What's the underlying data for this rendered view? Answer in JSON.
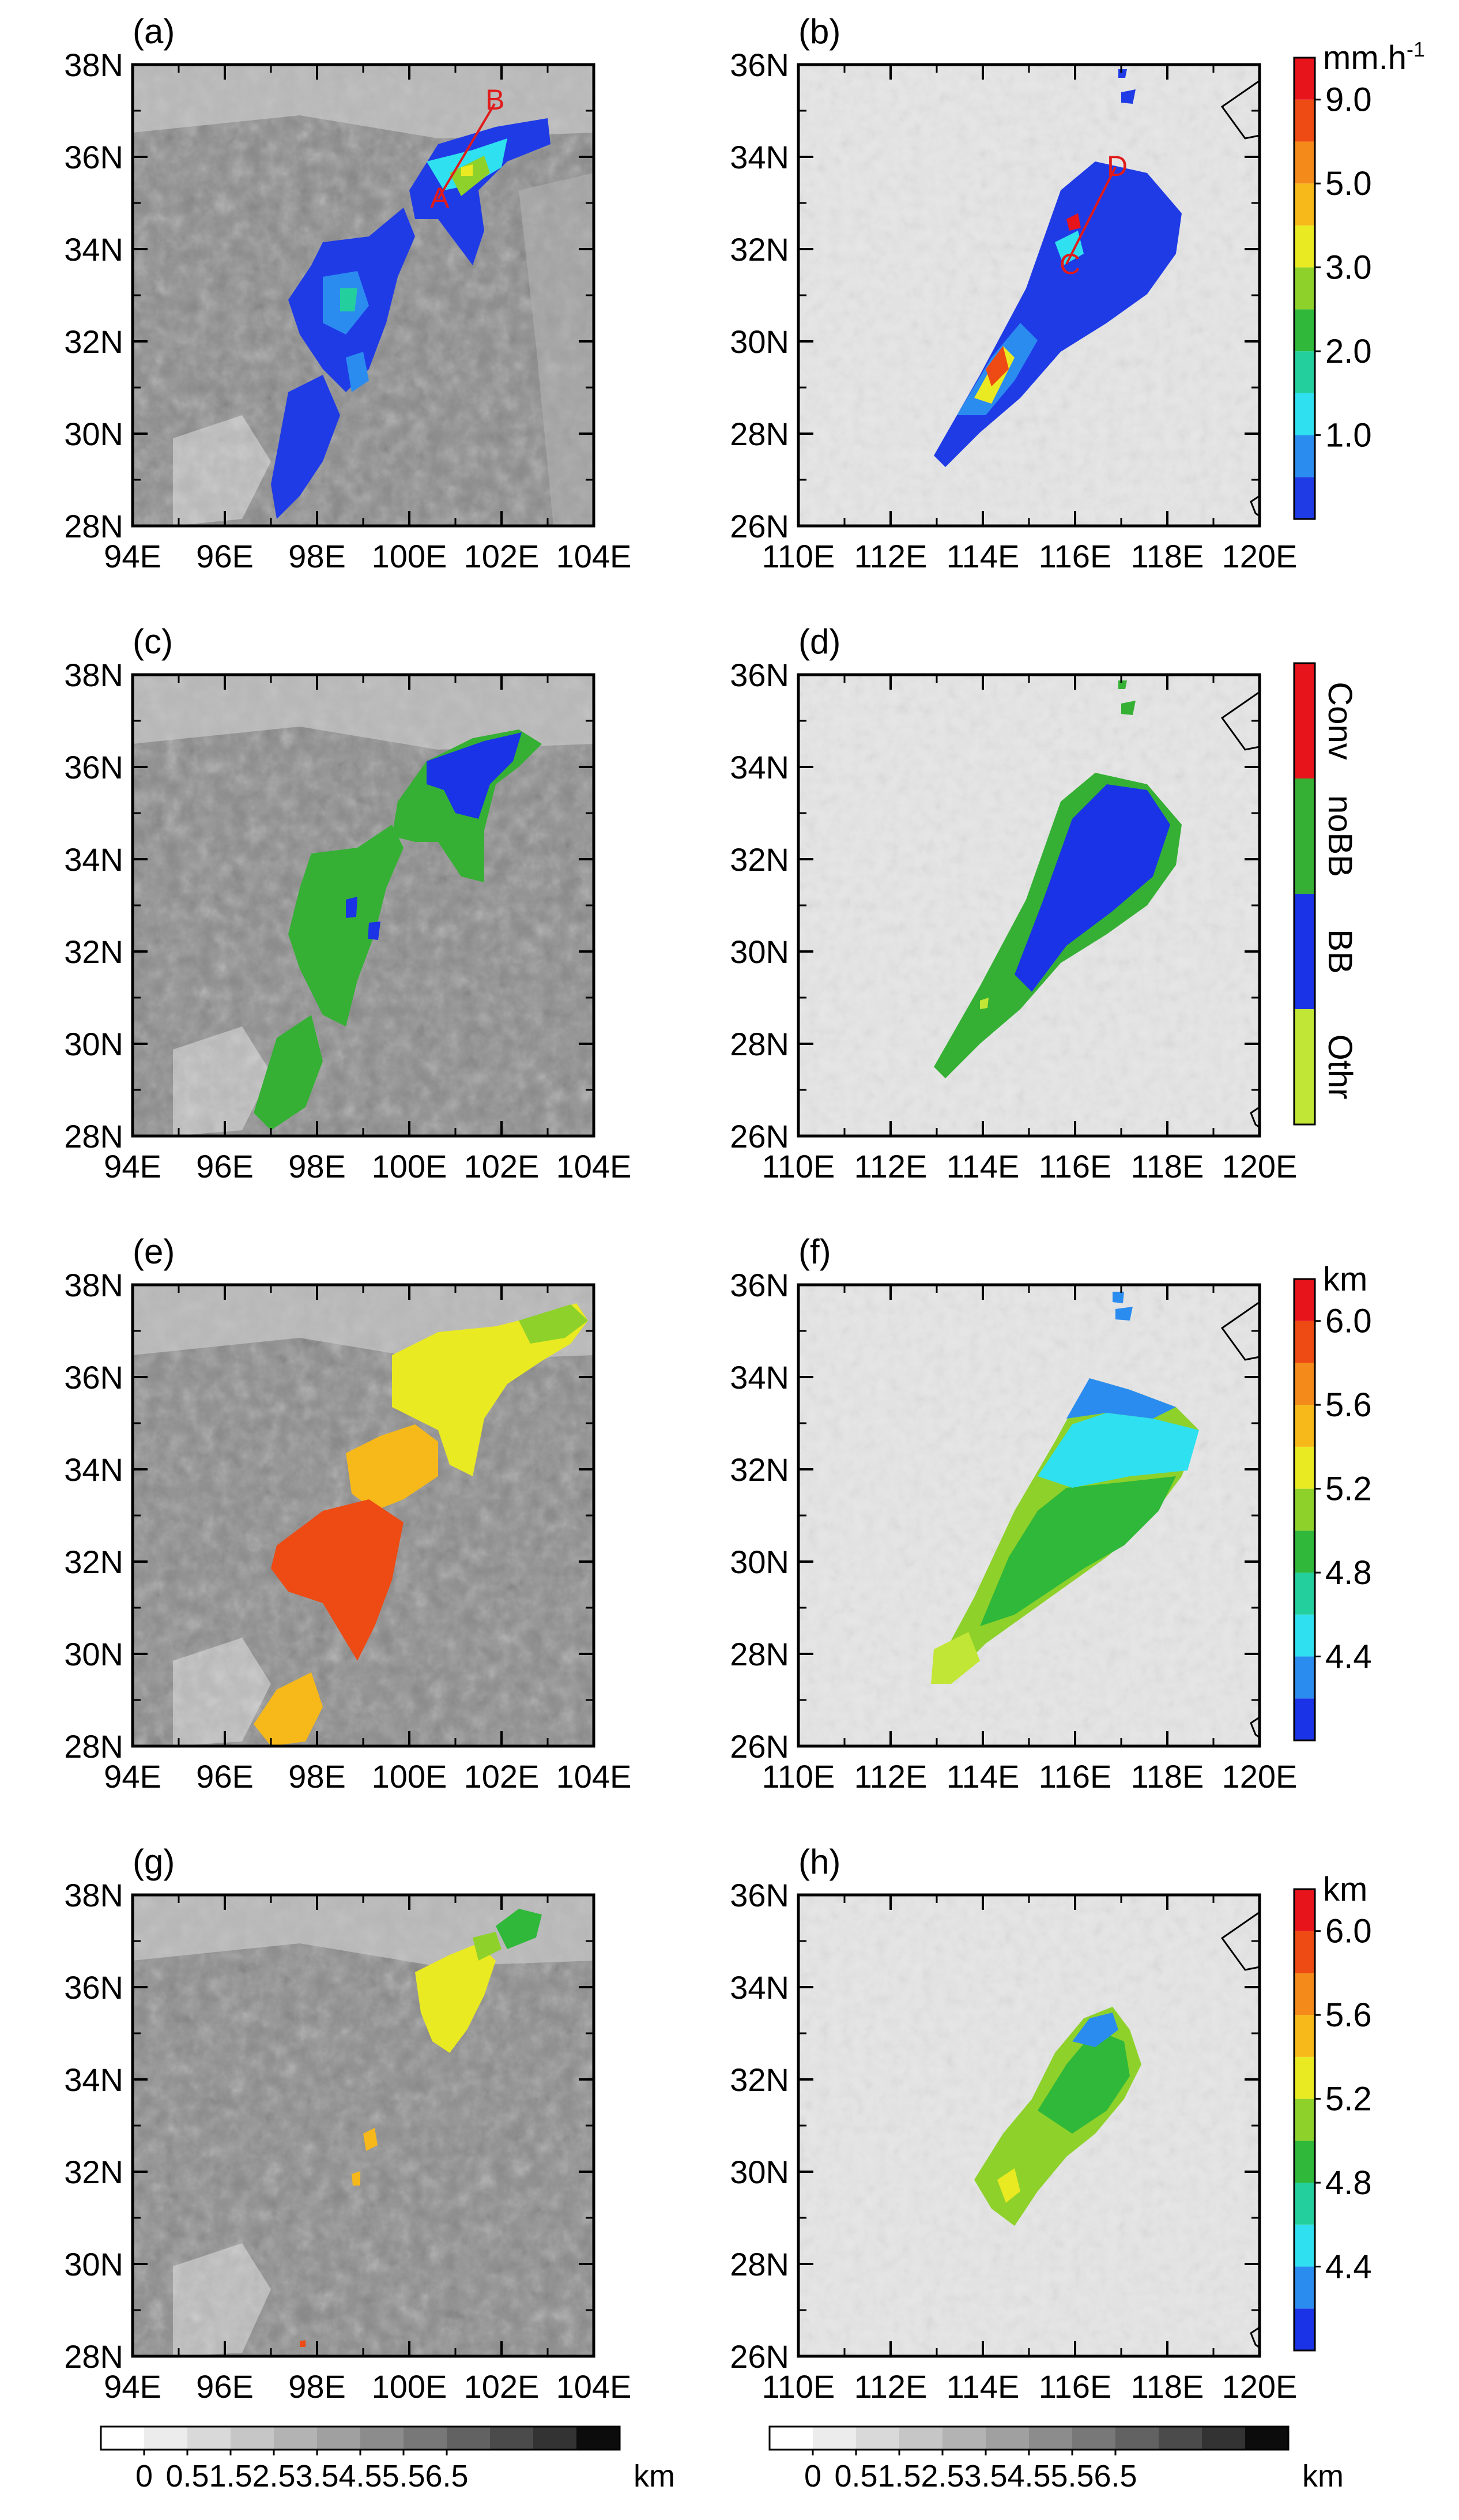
{
  "figure": {
    "panel_labels": [
      "(a)",
      "(b)",
      "(c)",
      "(d)",
      "(e)",
      "(f)",
      "(g)",
      "(h)"
    ]
  },
  "chart_data": [
    {
      "panel": "(a)",
      "type": "heatmap",
      "variable": "precipitation rate",
      "region": "left",
      "xlim": [
        94,
        104
      ],
      "ylim": [
        28,
        38
      ],
      "xticks": [
        "94E",
        "96E",
        "98E",
        "100E",
        "102E",
        "104E"
      ],
      "yticks": [
        "28N",
        "30N",
        "32N",
        "34N",
        "36N",
        "38N"
      ],
      "annotations": [
        "A",
        "B"
      ],
      "cross_section": {
        "from": [
          100.6,
          35.0
        ],
        "to": [
          101.8,
          36.7
        ]
      }
    },
    {
      "panel": "(b)",
      "type": "heatmap",
      "variable": "precipitation rate",
      "region": "right",
      "xlim": [
        110,
        120
      ],
      "ylim": [
        26,
        36
      ],
      "xticks": [
        "110E",
        "112E",
        "114E",
        "116E",
        "118E",
        "120E"
      ],
      "yticks": [
        "26N",
        "28N",
        "30N",
        "32N",
        "34N",
        "36N"
      ],
      "annotations": [
        "C",
        "D"
      ],
      "cross_section": {
        "from": [
          115.8,
          31.7
        ],
        "to": [
          116.6,
          33.8
        ]
      }
    },
    {
      "panel": "(c)",
      "type": "heatmap",
      "variable": "precipitation type",
      "region": "left",
      "xlim": [
        94,
        104
      ],
      "ylim": [
        28,
        38
      ],
      "xticks": [
        "94E",
        "96E",
        "98E",
        "100E",
        "102E",
        "104E"
      ],
      "yticks": [
        "28N",
        "30N",
        "32N",
        "34N",
        "36N",
        "38N"
      ]
    },
    {
      "panel": "(d)",
      "type": "heatmap",
      "variable": "precipitation type",
      "region": "right",
      "xlim": [
        110,
        120
      ],
      "ylim": [
        26,
        36
      ],
      "xticks": [
        "110E",
        "112E",
        "114E",
        "116E",
        "118E",
        "120E"
      ],
      "yticks": [
        "26N",
        "28N",
        "30N",
        "32N",
        "34N",
        "36N"
      ]
    },
    {
      "panel": "(e)",
      "type": "heatmap",
      "variable": "height (km)",
      "region": "left",
      "xlim": [
        94,
        104
      ],
      "ylim": [
        28,
        38
      ],
      "xticks": [
        "94E",
        "96E",
        "98E",
        "100E",
        "102E",
        "104E"
      ],
      "yticks": [
        "28N",
        "30N",
        "32N",
        "34N",
        "36N",
        "38N"
      ]
    },
    {
      "panel": "(f)",
      "type": "heatmap",
      "variable": "height (km)",
      "region": "right",
      "xlim": [
        110,
        120
      ],
      "ylim": [
        26,
        36
      ],
      "xticks": [
        "110E",
        "112E",
        "114E",
        "116E",
        "118E",
        "120E"
      ],
      "yticks": [
        "26N",
        "28N",
        "30N",
        "32N",
        "34N",
        "36N"
      ]
    },
    {
      "panel": "(g)",
      "type": "heatmap",
      "variable": "height (km)",
      "region": "left",
      "xlim": [
        94,
        104
      ],
      "ylim": [
        28,
        38
      ],
      "xticks": [
        "94E",
        "96E",
        "98E",
        "100E",
        "102E",
        "104E"
      ],
      "yticks": [
        "28N",
        "30N",
        "32N",
        "34N",
        "36N",
        "38N"
      ]
    },
    {
      "panel": "(h)",
      "type": "heatmap",
      "variable": "height (km)",
      "region": "right",
      "xlim": [
        110,
        120
      ],
      "ylim": [
        26,
        36
      ],
      "xticks": [
        "110E",
        "112E",
        "114E",
        "116E",
        "118E",
        "120E"
      ],
      "yticks": [
        "26N",
        "28N",
        "30N",
        "32N",
        "34N",
        "36N"
      ]
    }
  ],
  "colorbars": {
    "rain": {
      "unit": "mm.h",
      "unit_exponent": "-1",
      "labels": [
        "1.0",
        "2.0",
        "3.0",
        "5.0",
        "9.0"
      ],
      "colors": [
        "#1f3be6",
        "#2b8cf0",
        "#2fe0f0",
        "#24cf9e",
        "#2fb83a",
        "#8ed12a",
        "#eaea22",
        "#f7b91a",
        "#f48a1a",
        "#ee4a14",
        "#e8141c"
      ]
    },
    "type": {
      "categories": [
        "Conv",
        "noBB",
        "BB",
        "Othr"
      ],
      "colors": [
        "#e8141c",
        "#35b034",
        "#1a33e6",
        "#c2e635"
      ]
    },
    "height": {
      "unit": "km",
      "labels": [
        "4.4",
        "4.8",
        "5.2",
        "5.6",
        "6.0"
      ],
      "colors": [
        "#1a33e6",
        "#2b8cf0",
        "#2fe0f0",
        "#24cf9e",
        "#2fb83a",
        "#8ed12a",
        "#eaea22",
        "#f7b91a",
        "#f48a1a",
        "#ee4a14",
        "#e8141c"
      ]
    },
    "terrain": {
      "unit": "km",
      "labels": [
        "0",
        "0.5",
        "1.5",
        "2.5",
        "3.5",
        "4.5",
        "5.5",
        "6.5"
      ],
      "colors": [
        "#ffffff",
        "#ececec",
        "#d9d9d9",
        "#c6c6c6",
        "#b3b3b3",
        "#a0a0a0",
        "#8c8c8c",
        "#787878",
        "#626262",
        "#4b4b4b",
        "#333333",
        "#0c0c0c"
      ]
    }
  }
}
